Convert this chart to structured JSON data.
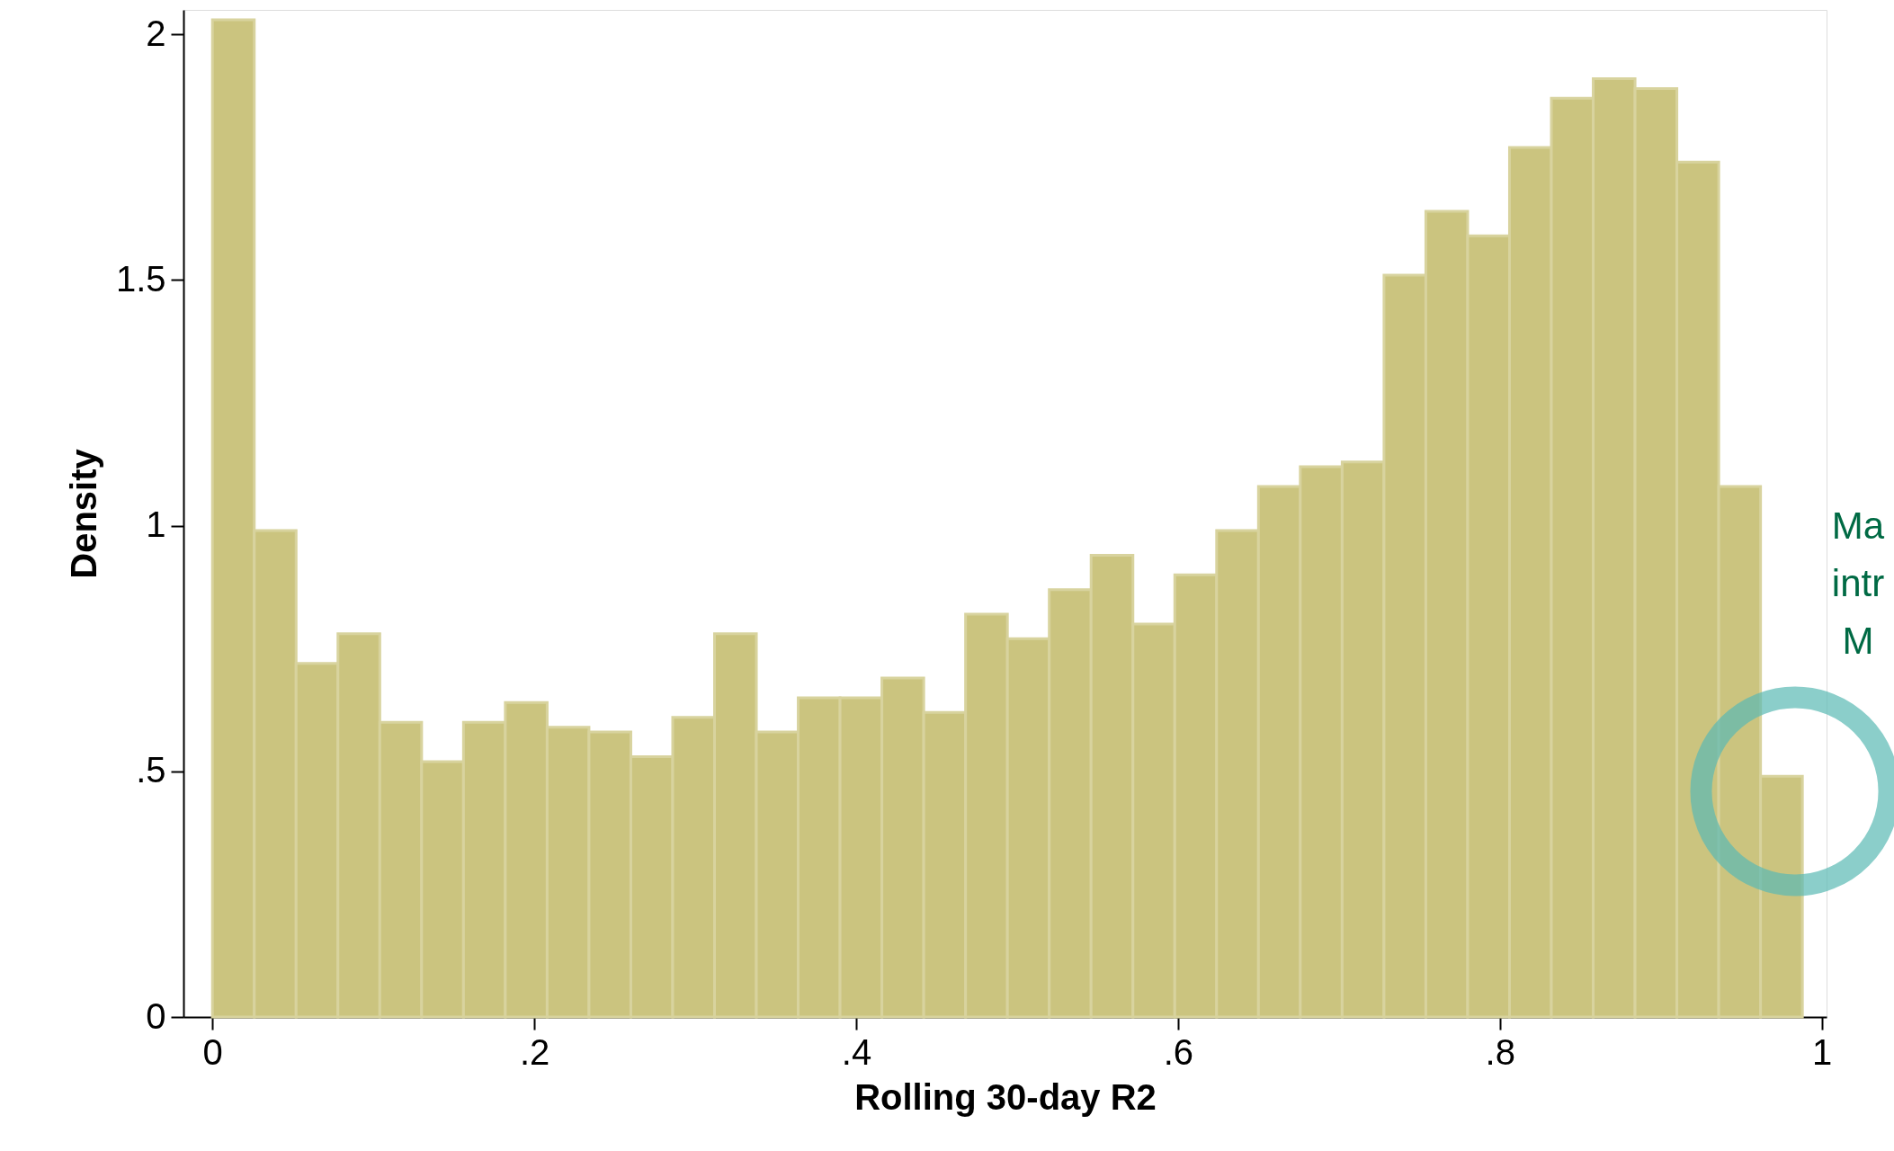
{
  "chart_data": {
    "type": "histogram",
    "xlabel": "Rolling 30-day R2",
    "ylabel": "Density",
    "bins": [
      0,
      0.026,
      0.052,
      0.078,
      0.104,
      0.13,
      0.156,
      0.182,
      0.208,
      0.234,
      0.26,
      0.286,
      0.312,
      0.338,
      0.364,
      0.39,
      0.416,
      0.442,
      0.468,
      0.494,
      0.52,
      0.546,
      0.572,
      0.598,
      0.624,
      0.65,
      0.676,
      0.702,
      0.728,
      0.754,
      0.78,
      0.806,
      0.832,
      0.858,
      0.884,
      0.91,
      0.936,
      0.962,
      0.988
    ],
    "values": [
      2.03,
      0.99,
      0.72,
      0.78,
      0.6,
      0.52,
      0.6,
      0.64,
      0.59,
      0.58,
      0.53,
      0.61,
      0.78,
      0.58,
      0.65,
      0.65,
      0.69,
      0.62,
      0.82,
      0.77,
      0.87,
      0.94,
      0.8,
      0.9,
      0.99,
      1.08,
      1.12,
      1.13,
      1.51,
      1.64,
      1.59,
      1.77,
      1.87,
      1.91,
      1.89,
      1.74,
      1.08,
      0.49
    ],
    "color": "#cbc47f",
    "xlim": [
      -0.018,
      1.003
    ],
    "xticks": [
      {
        "value": 0,
        "label": "0"
      },
      {
        "value": 0.2,
        "label": ".2"
      },
      {
        "value": 0.4,
        "label": ".4"
      },
      {
        "value": 0.6,
        "label": ".6"
      },
      {
        "value": 0.8,
        "label": ".8"
      },
      {
        "value": 1,
        "label": "1"
      }
    ],
    "ylim": [
      0,
      2.05
    ],
    "yticks": [
      {
        "value": 0,
        "label": "0"
      },
      {
        "value": 0.5,
        "label": ".5"
      },
      {
        "value": 1,
        "label": "1"
      },
      {
        "value": 1.5,
        "label": "1.5"
      },
      {
        "value": 2,
        "label": "2"
      }
    ],
    "grid": false,
    "annotations": [
      "Ma\nintr\nM"
    ]
  }
}
